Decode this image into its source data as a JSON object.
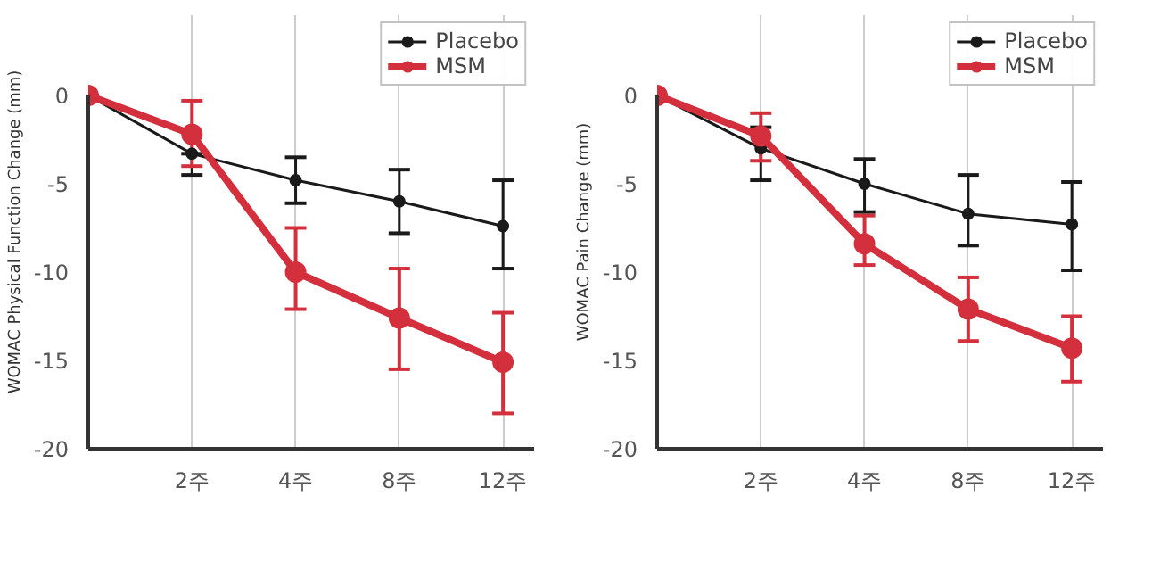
{
  "chart_data": [
    {
      "type": "line",
      "ylabel": "WOMAC Physical Function Change (mm)",
      "categories": [
        null,
        "2주",
        "4주",
        "8주",
        "12주"
      ],
      "ylim": [
        -20,
        0
      ],
      "yticks": [
        0,
        -5,
        -10,
        -15,
        -20
      ],
      "grid": "x",
      "legend": "top right",
      "marker": "circle",
      "series": [
        {
          "name": "Placebo",
          "color": "#1a1a1a",
          "values": [
            0,
            -3.3,
            -4.8,
            -6.0,
            -7.4
          ],
          "errors": [
            null,
            [
              -4.5,
              -3.3
            ],
            [
              -6.1,
              -3.5
            ],
            [
              -7.8,
              -4.2
            ],
            [
              -9.8,
              -4.8
            ]
          ]
        },
        {
          "name": "MSM",
          "color": "#d42f3c",
          "values": [
            0,
            -2.2,
            -10.0,
            -12.6,
            -15.1
          ],
          "errors": [
            null,
            [
              -4.0,
              -0.3
            ],
            [
              -12.1,
              -7.5
            ],
            [
              -15.5,
              -9.8
            ],
            [
              -18.0,
              -12.3
            ]
          ]
        }
      ]
    },
    {
      "type": "line",
      "ylabel": "WOMAC Pain Change (mm)",
      "categories": [
        null,
        "2주",
        "4주",
        "8주",
        "12주"
      ],
      "ylim": [
        -20,
        0
      ],
      "yticks": [
        0,
        -5,
        -10,
        -15,
        -20
      ],
      "grid": "x",
      "legend": "top right",
      "marker": "circle",
      "series": [
        {
          "name": "Placebo",
          "color": "#1a1a1a",
          "values": [
            0,
            -3.0,
            -5.0,
            -6.7,
            -7.3
          ],
          "errors": [
            null,
            [
              -4.8,
              -1.8
            ],
            [
              -6.6,
              -3.6
            ],
            [
              -8.5,
              -4.5
            ],
            [
              -9.9,
              -4.9
            ]
          ]
        },
        {
          "name": "MSM",
          "color": "#d42f3c",
          "values": [
            0,
            -2.3,
            -8.4,
            -12.1,
            -14.3
          ],
          "errors": [
            null,
            [
              -3.7,
              -1.0
            ],
            [
              -9.6,
              -6.8
            ],
            [
              -13.9,
              -10.3
            ],
            [
              -16.2,
              -12.5
            ]
          ]
        }
      ]
    }
  ]
}
